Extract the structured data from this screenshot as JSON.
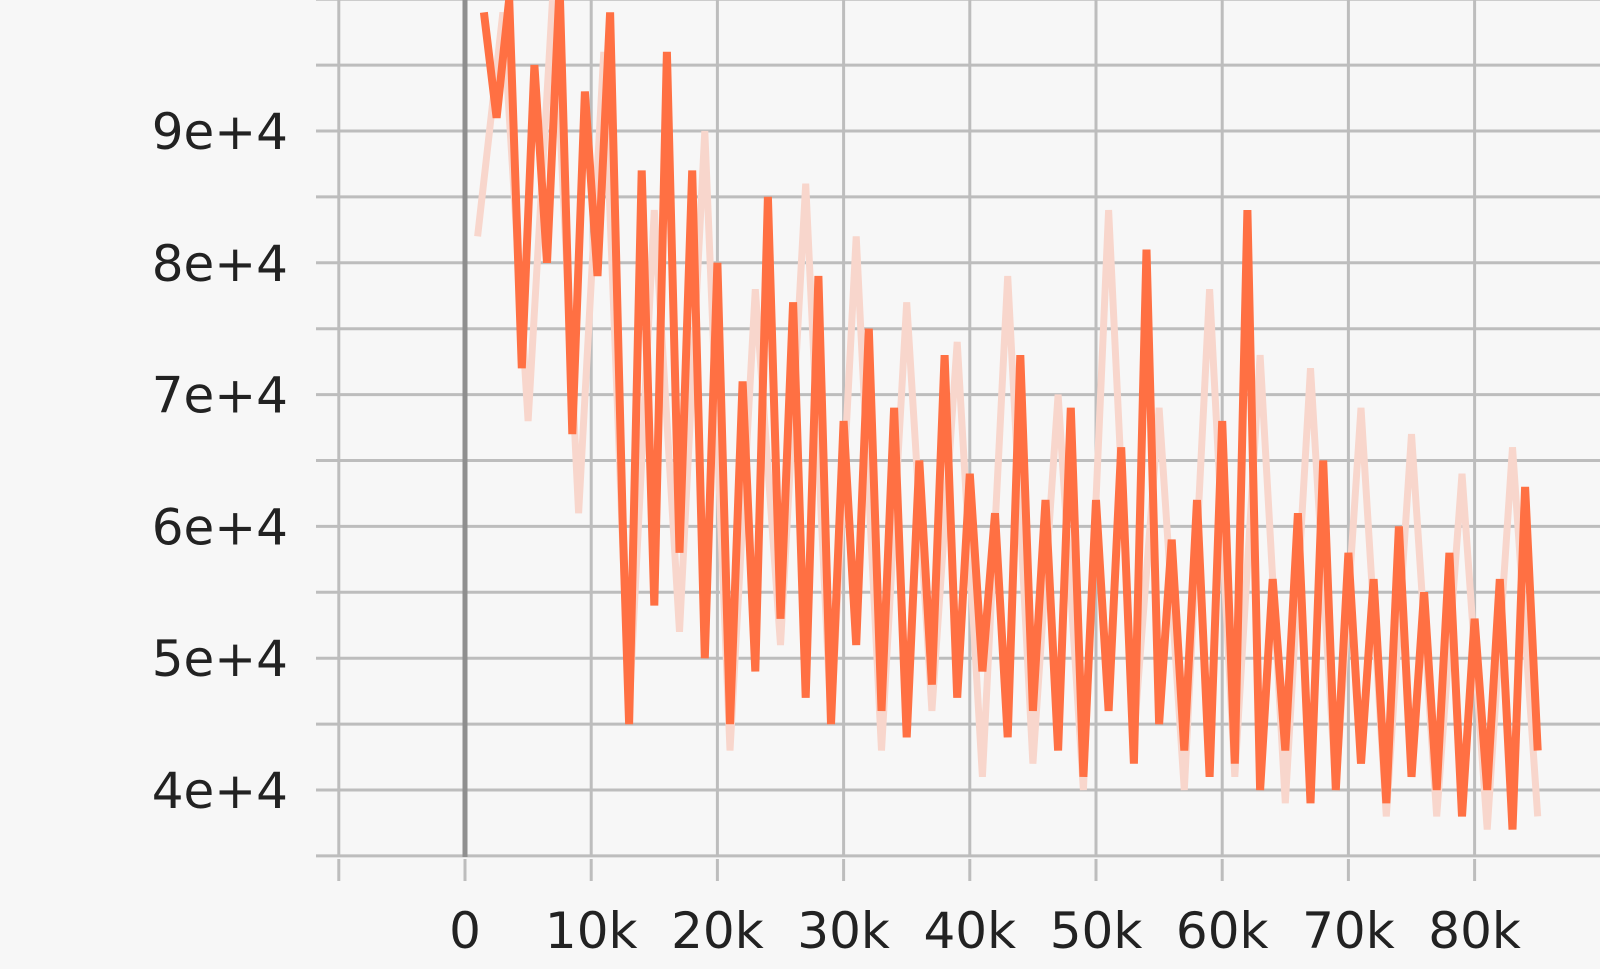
{
  "colors": {
    "background": "#f7f7f7",
    "grid": "#bdbdbd",
    "zero_axis": "#8f8f8f",
    "tick_text": "#222222",
    "smoothed_line": "#ff7043",
    "raw_line": "#f8d6cc"
  },
  "chart_data": {
    "type": "line",
    "title": "",
    "xlabel": "",
    "ylabel": "",
    "xlim": [
      -10000,
      90000
    ],
    "ylim": [
      35000,
      100000
    ],
    "grid": true,
    "legend": "none",
    "x_ticks": [
      0,
      10000,
      20000,
      30000,
      40000,
      50000,
      60000,
      70000,
      80000
    ],
    "x_tick_labels": [
      "0",
      "10k",
      "20k",
      "30k",
      "40k",
      "50k",
      "60k",
      "70k",
      "80k"
    ],
    "y_ticks": [
      40000,
      50000,
      60000,
      70000,
      80000,
      90000
    ],
    "y_tick_labels": [
      "4e+4",
      "5e+4",
      "6e+4",
      "7e+4",
      "8e+4",
      "9e+4"
    ],
    "series": [
      {
        "role": "raw",
        "x": [
          1000,
          3000,
          5000,
          7000,
          9000,
          11000,
          13000,
          15000,
          17000,
          19000,
          21000,
          23000,
          25000,
          27000,
          29000,
          31000,
          33000,
          35000,
          37000,
          39000,
          41000,
          43000,
          45000,
          47000,
          49000,
          51000,
          53000,
          55000,
          57000,
          59000,
          61000,
          63000,
          65000,
          67000,
          69000,
          71000,
          73000,
          75000,
          77000,
          79000,
          81000,
          83000,
          85000
        ],
        "y": [
          82000,
          99000,
          68000,
          101000,
          61000,
          96000,
          46000,
          84000,
          52000,
          90000,
          43000,
          78000,
          51000,
          86000,
          45000,
          82000,
          43000,
          77000,
          46000,
          74000,
          41000,
          79000,
          42000,
          70000,
          40000,
          84000,
          44000,
          69000,
          40000,
          78000,
          41000,
          73000,
          39000,
          72000,
          40000,
          69000,
          38000,
          67000,
          38000,
          64000,
          37000,
          66000,
          38000
        ]
      },
      {
        "role": "smoothed",
        "x": [
          1500,
          2500,
          3500,
          4500,
          5500,
          6500,
          7500,
          8500,
          9500,
          10500,
          11500,
          12500,
          13000,
          14000,
          15000,
          16000,
          17000,
          18000,
          19000,
          20000,
          21000,
          22000,
          23000,
          24000,
          25000,
          26000,
          27000,
          28000,
          29000,
          30000,
          31000,
          32000,
          33000,
          34000,
          35000,
          36000,
          37000,
          38000,
          39000,
          40000,
          41000,
          42000,
          43000,
          44000,
          45000,
          46000,
          47000,
          48000,
          49000,
          50000,
          51000,
          52000,
          53000,
          54000,
          55000,
          56000,
          57000,
          58000,
          59000,
          60000,
          61000,
          62000,
          63000,
          64000,
          65000,
          66000,
          67000,
          68000,
          69000,
          70000,
          71000,
          72000,
          73000,
          74000,
          75000,
          76000,
          77000,
          78000,
          79000,
          80000,
          81000,
          82000,
          83000,
          84000,
          85000
        ],
        "y": [
          99000,
          91000,
          100000,
          72000,
          95000,
          80000,
          101000,
          67000,
          93000,
          79000,
          99000,
          60000,
          45000,
          87000,
          54000,
          96000,
          58000,
          87000,
          50000,
          80000,
          45000,
          71000,
          49000,
          85000,
          53000,
          77000,
          47000,
          79000,
          45000,
          68000,
          51000,
          75000,
          46000,
          69000,
          44000,
          65000,
          48000,
          73000,
          47000,
          64000,
          49000,
          61000,
          44000,
          73000,
          46000,
          62000,
          43000,
          69000,
          41000,
          62000,
          46000,
          66000,
          42000,
          81000,
          45000,
          59000,
          43000,
          62000,
          41000,
          68000,
          42000,
          84000,
          40000,
          56000,
          43000,
          61000,
          39000,
          65000,
          40000,
          58000,
          42000,
          56000,
          39000,
          60000,
          41000,
          55000,
          40000,
          58000,
          38000,
          53000,
          40000,
          56000,
          37000,
          63000,
          43000
        ]
      }
    ]
  }
}
